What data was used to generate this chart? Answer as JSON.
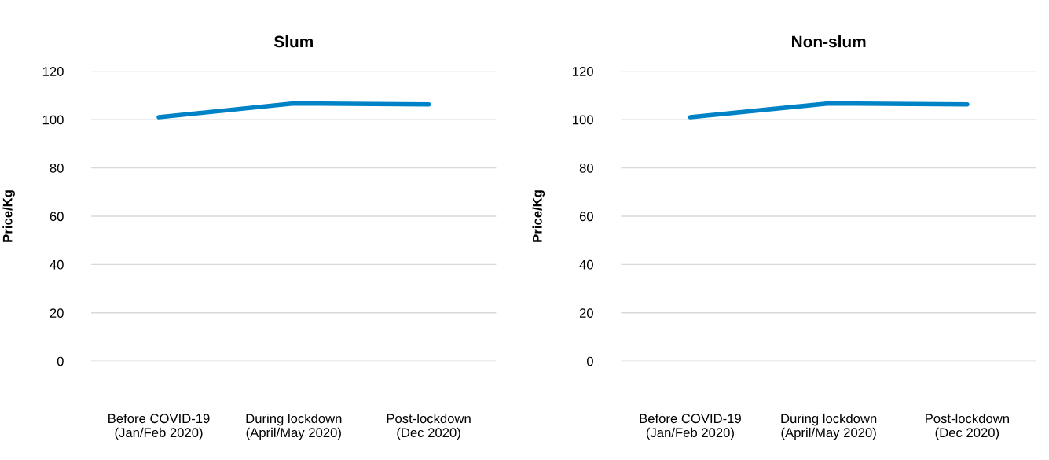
{
  "chart_data": [
    {
      "type": "line",
      "title": "Slum",
      "ylabel": "Price/Kg",
      "categories": [
        "Before COVID-19\n(Jan/Feb 2020)",
        "During lockdown\n(April/May 2020)",
        "Post-lockdown\n(Dec 2020)"
      ],
      "series": [
        {
          "color": "#0083c6",
          "values": [
            101,
            106.7,
            106.3
          ]
        }
      ],
      "ylim": [
        0,
        120
      ],
      "yticks": [
        0,
        20,
        40,
        60,
        80,
        100,
        120
      ],
      "grid": "y",
      "legend": false
    },
    {
      "type": "line",
      "title": "Non-slum",
      "ylabel": "Price/Kg",
      "categories": [
        "Before COVID-19\n(Jan/Feb 2020)",
        "During lockdown\n(April/May 2020)",
        "Post-lockdown\n(Dec 2020)"
      ],
      "series": [
        {
          "color": "#0083c6",
          "values": [
            101,
            106.7,
            106.3
          ]
        }
      ],
      "ylim": [
        0,
        120
      ],
      "yticks": [
        0,
        20,
        40,
        60,
        80,
        100,
        120
      ],
      "grid": "y",
      "legend": false
    }
  ]
}
